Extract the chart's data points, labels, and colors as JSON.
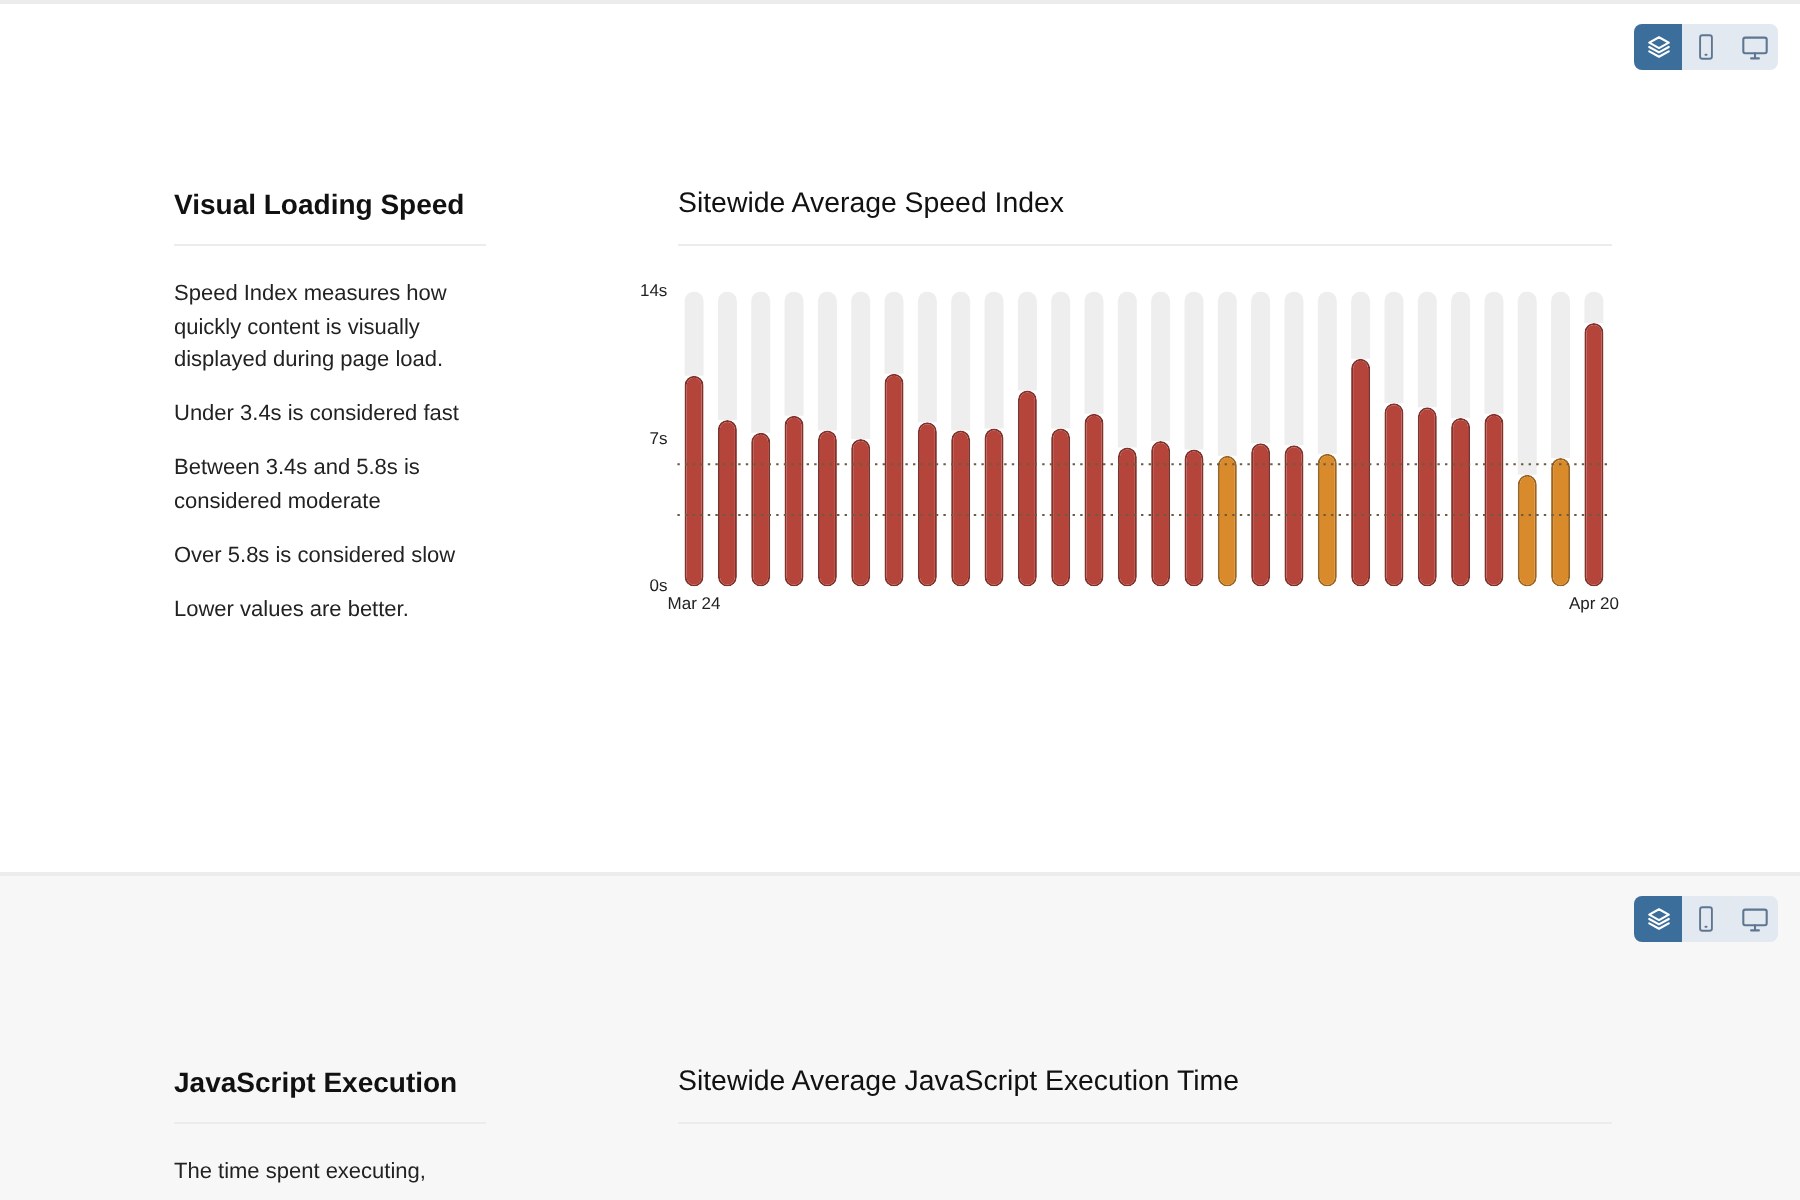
{
  "chart_data": [
    {
      "type": "bar",
      "title": "Sitewide Average Speed Index",
      "annotations": [
        "Visual Loading Speed",
        "Speed Index measures how quickly content is visually displayed during page load.",
        "Under 3.4s is considered fast",
        "Between 3.4s and 5.8s is considered moderate",
        "Over 5.8s is considered slow",
        "Lower values are better."
      ],
      "categories": [
        "Mar 24",
        null,
        null,
        null,
        null,
        null,
        null,
        null,
        null,
        null,
        null,
        null,
        null,
        null,
        null,
        null,
        null,
        null,
        null,
        null,
        null,
        null,
        null,
        null,
        null,
        null,
        null,
        "Apr 20"
      ],
      "stacked": true,
      "series": [
        {
          "colors": [
            "#b5443b",
            "#b5443b",
            "#b5443b",
            "#b5443b",
            "#b5443b",
            "#b5443b",
            "#b5443b",
            "#b5443b",
            "#b5443b",
            "#b5443b",
            "#b5443b",
            "#b5443b",
            "#b5443b",
            "#b5443b",
            "#b5443b",
            "#b5443b",
            "#d98b2b",
            "#b5443b",
            "#b5443b",
            "#d98b2b",
            "#b5443b",
            "#b5443b",
            "#b5443b",
            "#b5443b",
            "#b5443b",
            "#d98b2b",
            "#d98b2b",
            "#b5443b"
          ],
          "values": [
            10.0,
            7.9,
            7.3,
            8.1,
            7.4,
            7.0,
            10.1,
            7.8,
            7.4,
            7.5,
            9.3,
            7.5,
            8.2,
            6.6,
            6.9,
            6.5,
            6.2,
            6.8,
            6.7,
            6.3,
            10.8,
            8.7,
            8.5,
            8.0,
            8.2,
            5.3,
            6.1,
            12.5
          ]
        },
        {
          "color": "#eeeeee",
          "values": [
            4.0,
            6.1,
            6.7,
            5.9,
            6.6,
            7.0,
            3.9,
            6.2,
            6.6,
            6.5,
            4.7,
            6.5,
            5.8,
            7.4,
            7.1,
            7.5,
            7.8,
            7.2,
            7.3,
            7.7,
            3.2,
            5.3,
            5.5,
            6.0,
            5.8,
            8.7,
            7.9,
            1.5
          ]
        }
      ],
      "ylim": [
        0,
        14
      ],
      "yticks": [
        {
          "value": 0,
          "label": "0s"
        },
        {
          "value": 7,
          "label": "7s"
        },
        {
          "value": 14,
          "label": "14s"
        }
      ],
      "ref_lines": [
        {
          "axis": "y",
          "value": 5.8,
          "color": "#6d5c3f",
          "line_style": "dotted"
        },
        {
          "axis": "y",
          "value": 3.4,
          "color": "#6d5c3f",
          "line_style": "dotted"
        }
      ],
      "grid": false,
      "legend": false
    },
    {
      "type": "other",
      "title": "Sitewide Average JavaScript Execution Time",
      "annotations": [
        "JavaScript Execution",
        "The time spent executing,"
      ]
    }
  ]
}
